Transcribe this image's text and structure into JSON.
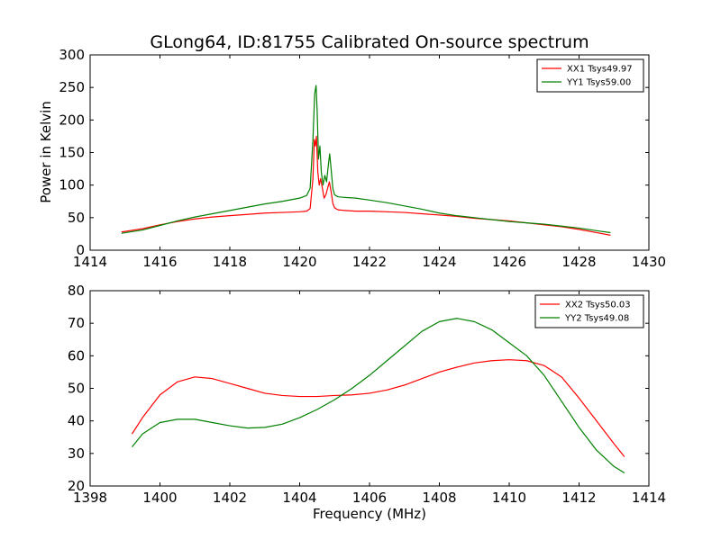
{
  "chart_data": [
    {
      "type": "line",
      "title": "GLong64, ID:81755 Calibrated On-source spectrum",
      "xlabel": "",
      "ylabel": "Power in Kelvin",
      "xlim": [
        1414,
        1430
      ],
      "ylim": [
        0,
        300
      ],
      "xticks": [
        "1414",
        "1416",
        "1418",
        "1420",
        "1422",
        "1424",
        "1426",
        "1428",
        "1430"
      ],
      "yticks": [
        "0",
        "50",
        "100",
        "150",
        "200",
        "250",
        "300"
      ],
      "grid": false,
      "legend_position": "top-right",
      "series": [
        {
          "name": "XX1 Tsys49.97",
          "color": "#ff0000",
          "x": [
            1414.9,
            1415.5,
            1416.0,
            1416.5,
            1417.0,
            1417.5,
            1418.0,
            1418.5,
            1419.0,
            1419.5,
            1420.0,
            1420.2,
            1420.3,
            1420.38,
            1420.42,
            1420.45,
            1420.48,
            1420.52,
            1420.56,
            1420.6,
            1420.65,
            1420.7,
            1420.75,
            1420.8,
            1420.85,
            1420.9,
            1420.95,
            1421.0,
            1421.1,
            1421.3,
            1421.6,
            1422.0,
            1422.5,
            1423.0,
            1423.5,
            1424.0,
            1424.5,
            1425.0,
            1425.5,
            1426.0,
            1426.5,
            1427.0,
            1427.5,
            1428.0,
            1428.5,
            1428.9
          ],
          "y": [
            28,
            33,
            39,
            44,
            48,
            51,
            53,
            55,
            57,
            58,
            59,
            60,
            64,
            110,
            170,
            160,
            175,
            120,
            100,
            110,
            95,
            80,
            85,
            95,
            105,
            90,
            72,
            65,
            62,
            61,
            60,
            60,
            59,
            58,
            56,
            54,
            52,
            49,
            47,
            45,
            42,
            39,
            36,
            32,
            27,
            23
          ]
        },
        {
          "name": "YY1 Tsys59.00",
          "color": "#008000",
          "x": [
            1414.9,
            1415.5,
            1416.0,
            1416.5,
            1417.0,
            1417.5,
            1418.0,
            1418.5,
            1419.0,
            1419.5,
            1420.0,
            1420.2,
            1420.3,
            1420.38,
            1420.43,
            1420.47,
            1420.5,
            1420.54,
            1420.58,
            1420.62,
            1420.67,
            1420.72,
            1420.77,
            1420.82,
            1420.86,
            1420.9,
            1420.95,
            1421.0,
            1421.1,
            1421.3,
            1421.6,
            1422.0,
            1422.5,
            1423.0,
            1423.5,
            1424.0,
            1424.5,
            1425.0,
            1425.5,
            1426.0,
            1426.5,
            1427.0,
            1427.5,
            1428.0,
            1428.5,
            1428.9
          ],
          "y": [
            26,
            31,
            38,
            45,
            51,
            56,
            61,
            66,
            71,
            75,
            80,
            84,
            95,
            170,
            240,
            253,
            215,
            140,
            160,
            120,
            100,
            115,
            105,
            130,
            148,
            125,
            95,
            85,
            82,
            81,
            80,
            77,
            73,
            68,
            63,
            57,
            53,
            50,
            47,
            44,
            42,
            40,
            37,
            34,
            30,
            27
          ]
        }
      ]
    },
    {
      "type": "line",
      "title": "",
      "xlabel": "Frequency (MHz)",
      "ylabel": "",
      "xlim": [
        1398,
        1414
      ],
      "ylim": [
        20,
        80
      ],
      "xticks": [
        "1398",
        "1400",
        "1402",
        "1404",
        "1406",
        "1408",
        "1410",
        "1412",
        "1414"
      ],
      "yticks": [
        "20",
        "30",
        "40",
        "50",
        "60",
        "70",
        "80"
      ],
      "grid": false,
      "legend_position": "top-right",
      "series": [
        {
          "name": "XX2 Tsys50.03",
          "color": "#ff0000",
          "x": [
            1399.2,
            1399.5,
            1400.0,
            1400.5,
            1401.0,
            1401.5,
            1402.0,
            1402.5,
            1403.0,
            1403.5,
            1404.0,
            1404.5,
            1405.0,
            1405.5,
            1406.0,
            1406.5,
            1407.0,
            1407.5,
            1408.0,
            1408.5,
            1409.0,
            1409.5,
            1410.0,
            1410.5,
            1411.0,
            1411.5,
            1412.0,
            1412.5,
            1413.0,
            1413.3
          ],
          "y": [
            36,
            41,
            48,
            52,
            53.5,
            53,
            51.5,
            50,
            48.5,
            47.8,
            47.5,
            47.5,
            47.8,
            48,
            48.5,
            49.5,
            51,
            53,
            55,
            56.5,
            57.8,
            58.5,
            58.8,
            58.5,
            57,
            53.5,
            47,
            40,
            33,
            29
          ]
        },
        {
          "name": "YY2 Tsys49.08",
          "color": "#008000",
          "x": [
            1399.2,
            1399.5,
            1400.0,
            1400.5,
            1401.0,
            1401.5,
            1402.0,
            1402.5,
            1403.0,
            1403.5,
            1404.0,
            1404.5,
            1405.0,
            1405.5,
            1406.0,
            1406.5,
            1407.0,
            1407.5,
            1408.0,
            1408.5,
            1409.0,
            1409.5,
            1410.0,
            1410.5,
            1411.0,
            1411.5,
            1412.0,
            1412.5,
            1413.0,
            1413.3
          ],
          "y": [
            32,
            36,
            39.5,
            40.5,
            40.5,
            39.5,
            38.5,
            37.8,
            38,
            39,
            41,
            43.5,
            46.5,
            50,
            54,
            58.5,
            63,
            67.5,
            70.5,
            71.5,
            70.5,
            68,
            64,
            60,
            54,
            46,
            38,
            31,
            26,
            24
          ]
        }
      ]
    }
  ]
}
